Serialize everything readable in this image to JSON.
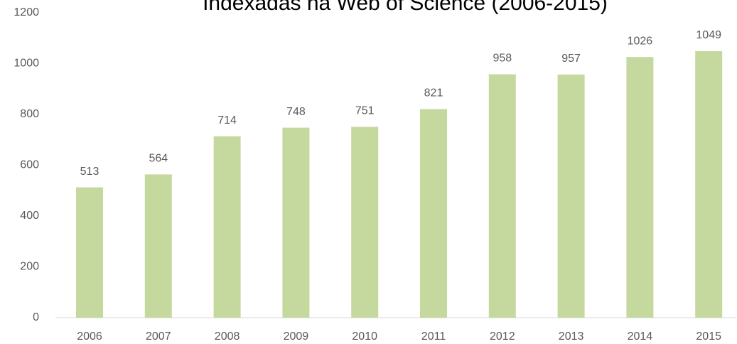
{
  "chart_data": {
    "type": "bar",
    "title": "Indexadas na Web of Science (2006-2015)",
    "categories": [
      "2006",
      "2007",
      "2008",
      "2009",
      "2010",
      "2011",
      "2012",
      "2013",
      "2014",
      "2015"
    ],
    "values": [
      513,
      564,
      714,
      748,
      751,
      821,
      958,
      957,
      1026,
      1049
    ],
    "color": "#c5d99f",
    "ylim": [
      0,
      1200
    ],
    "yticks": [
      0,
      200,
      400,
      600,
      800,
      1000,
      1200
    ],
    "grid": false
  }
}
